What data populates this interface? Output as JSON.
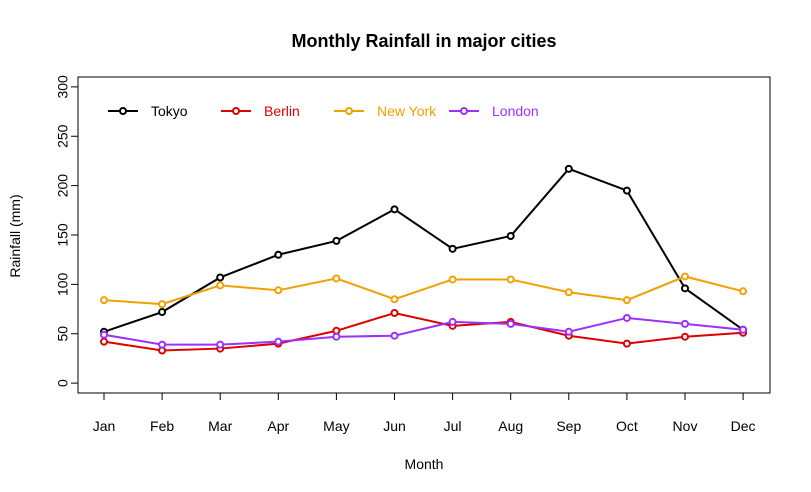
{
  "chart_data": {
    "type": "line",
    "title": "Monthly Rainfall in major cities",
    "xlabel": "Month",
    "ylabel": "Rainfall (mm)",
    "categories": [
      "Jan",
      "Feb",
      "Mar",
      "Apr",
      "May",
      "Jun",
      "Jul",
      "Aug",
      "Sep",
      "Oct",
      "Nov",
      "Dec"
    ],
    "ylim": [
      -10,
      310
    ],
    "yticks": [
      0,
      50,
      100,
      150,
      200,
      250,
      300
    ],
    "legend_position": "top-left",
    "grid": false,
    "series": [
      {
        "name": "Tokyo",
        "color": "#000000",
        "values": [
          52,
          72,
          107,
          130,
          144,
          176,
          136,
          149,
          217,
          195,
          96,
          54
        ]
      },
      {
        "name": "Berlin",
        "color": "#dd0000",
        "values": [
          42,
          33,
          35,
          40,
          53,
          71,
          58,
          62,
          48,
          40,
          47,
          51
        ]
      },
      {
        "name": "New York",
        "color": "#f0a000",
        "values": [
          84,
          80,
          99,
          94,
          106,
          85,
          105,
          105,
          92,
          84,
          108,
          93
        ]
      },
      {
        "name": "London",
        "color": "#9b30ff",
        "values": [
          49,
          39,
          39,
          42,
          47,
          48,
          62,
          60,
          52,
          66,
          60,
          54
        ]
      }
    ]
  }
}
